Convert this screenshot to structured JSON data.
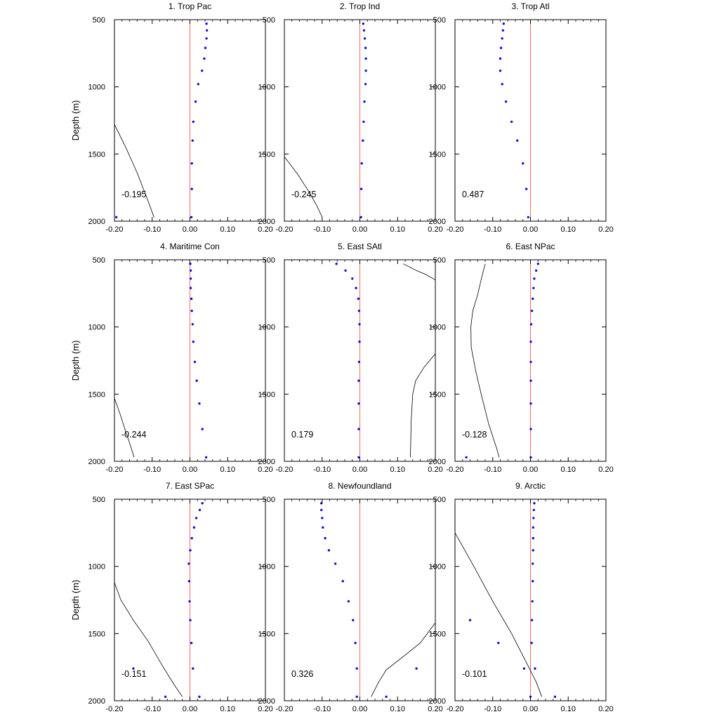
{
  "colors": {
    "zero_line": "#ff6666",
    "points": "#1010e0",
    "curve": "#000000",
    "frame": "#000000"
  },
  "shared": {
    "ylabel": "Depth (m)",
    "xlim": [
      -0.2,
      0.2
    ],
    "ylim": [
      500,
      2000
    ],
    "y_inverted": true,
    "xticks": [
      -0.2,
      -0.1,
      0.0,
      0.1,
      0.2
    ],
    "xtick_labels": [
      "-0.20",
      "-0.10",
      "0.00",
      "0.10",
      "0.20"
    ],
    "yticks": [
      500,
      1000,
      1500,
      2000
    ],
    "ytick_labels": [
      "500",
      "1000",
      "1500",
      "2000"
    ]
  },
  "chart_data": [
    {
      "type": "scatter",
      "title": "1. Trop Pac",
      "annotation": "-0.195",
      "points": [
        [
          0.044,
          530
        ],
        [
          0.045,
          580
        ],
        [
          0.044,
          640
        ],
        [
          0.041,
          710
        ],
        [
          0.038,
          790
        ],
        [
          0.032,
          880
        ],
        [
          0.022,
          980
        ],
        [
          0.015,
          1110
        ],
        [
          0.009,
          1260
        ],
        [
          0.007,
          1400
        ],
        [
          0.005,
          1570
        ],
        [
          0.005,
          1760
        ],
        [
          0.004,
          1970
        ],
        [
          -0.195,
          1970
        ]
      ],
      "curve": [
        [
          -0.2,
          1280
        ],
        [
          -0.17,
          1450
        ],
        [
          -0.14,
          1640
        ],
        [
          -0.115,
          1820
        ],
        [
          -0.095,
          1970
        ]
      ]
    },
    {
      "type": "scatter",
      "title": "2. Trop Ind",
      "annotation": "-0.245",
      "points": [
        [
          0.009,
          530
        ],
        [
          0.011,
          580
        ],
        [
          0.013,
          640
        ],
        [
          0.015,
          710
        ],
        [
          0.016,
          790
        ],
        [
          0.016,
          880
        ],
        [
          0.015,
          980
        ],
        [
          0.012,
          1110
        ],
        [
          0.01,
          1260
        ],
        [
          0.008,
          1400
        ],
        [
          0.005,
          1570
        ],
        [
          0.004,
          1760
        ],
        [
          0.003,
          1970
        ]
      ],
      "curve": [
        [
          -0.2,
          1520
        ],
        [
          -0.165,
          1650
        ],
        [
          -0.135,
          1780
        ],
        [
          -0.115,
          1880
        ],
        [
          -0.1,
          1970
        ]
      ]
    },
    {
      "type": "scatter",
      "title": "3. Trop Atl",
      "annotation": "0.487",
      "points": [
        [
          -0.071,
          530
        ],
        [
          -0.073,
          580
        ],
        [
          -0.075,
          640
        ],
        [
          -0.078,
          710
        ],
        [
          -0.08,
          790
        ],
        [
          -0.08,
          880
        ],
        [
          -0.075,
          980
        ],
        [
          -0.065,
          1110
        ],
        [
          -0.05,
          1260
        ],
        [
          -0.035,
          1400
        ],
        [
          -0.02,
          1570
        ],
        [
          -0.011,
          1760
        ],
        [
          -0.006,
          1970
        ]
      ],
      "curve": []
    },
    {
      "type": "scatter",
      "title": "4. Maritime Con",
      "annotation": "-0.244",
      "points": [
        [
          0.001,
          530
        ],
        [
          0.002,
          580
        ],
        [
          0.002,
          640
        ],
        [
          0.002,
          710
        ],
        [
          0.004,
          790
        ],
        [
          0.005,
          880
        ],
        [
          0.007,
          980
        ],
        [
          0.009,
          1110
        ],
        [
          0.013,
          1260
        ],
        [
          0.018,
          1400
        ],
        [
          0.025,
          1570
        ],
        [
          0.033,
          1760
        ],
        [
          0.043,
          1970
        ]
      ],
      "curve": [
        [
          -0.2,
          1530
        ],
        [
          -0.185,
          1650
        ],
        [
          -0.17,
          1780
        ],
        [
          -0.158,
          1880
        ],
        [
          -0.148,
          1970
        ]
      ]
    },
    {
      "type": "scatter",
      "title": "5. East SAtl",
      "annotation": "0.179",
      "points": [
        [
          -0.062,
          530
        ],
        [
          -0.038,
          580
        ],
        [
          -0.02,
          640
        ],
        [
          -0.01,
          710
        ],
        [
          -0.004,
          790
        ],
        [
          -0.002,
          880
        ],
        [
          -0.001,
          980
        ],
        [
          -0.001,
          1110
        ],
        [
          -0.002,
          1260
        ],
        [
          -0.003,
          1400
        ],
        [
          -0.003,
          1570
        ],
        [
          -0.003,
          1760
        ],
        [
          -0.003,
          1970
        ]
      ],
      "curve": [
        [
          0.115,
          530
        ],
        [
          0.15,
          580
        ],
        [
          0.175,
          610
        ],
        [
          0.2,
          650
        ]
      ],
      "curve2": [
        [
          0.2,
          1200
        ],
        [
          0.17,
          1300
        ],
        [
          0.148,
          1400
        ],
        [
          0.14,
          1500
        ],
        [
          0.136,
          1700
        ],
        [
          0.134,
          1970
        ]
      ]
    },
    {
      "type": "scatter",
      "title": "6. East NPac",
      "annotation": "-0.128",
      "points": [
        [
          0.02,
          530
        ],
        [
          0.015,
          580
        ],
        [
          0.01,
          640
        ],
        [
          0.008,
          710
        ],
        [
          0.006,
          790
        ],
        [
          0.004,
          880
        ],
        [
          0.002,
          980
        ],
        [
          0.001,
          1110
        ],
        [
          0.001,
          1260
        ],
        [
          0.001,
          1400
        ],
        [
          0.001,
          1570
        ],
        [
          0.001,
          1760
        ],
        [
          0.001,
          1970
        ],
        [
          -0.17,
          1970
        ]
      ],
      "curve": [
        [
          -0.12,
          530
        ],
        [
          -0.13,
          640
        ],
        [
          -0.14,
          760
        ],
        [
          -0.153,
          880
        ],
        [
          -0.158,
          1000
        ],
        [
          -0.157,
          1150
        ],
        [
          -0.145,
          1330
        ],
        [
          -0.128,
          1530
        ],
        [
          -0.11,
          1730
        ],
        [
          -0.09,
          1900
        ],
        [
          -0.083,
          1970
        ]
      ]
    },
    {
      "type": "scatter",
      "title": "7. East SPac",
      "annotation": "-0.151",
      "points": [
        [
          0.033,
          530
        ],
        [
          0.026,
          580
        ],
        [
          0.017,
          640
        ],
        [
          0.011,
          710
        ],
        [
          0.005,
          790
        ],
        [
          0.001,
          880
        ],
        [
          -0.003,
          980
        ],
        [
          -0.002,
          1110
        ],
        [
          -0.001,
          1260
        ],
        [
          0.001,
          1400
        ],
        [
          0.004,
          1570
        ],
        [
          0.008,
          1760
        ],
        [
          0.025,
          1970
        ],
        [
          -0.065,
          1970
        ],
        [
          -0.15,
          1760
        ]
      ],
      "curve": [
        [
          -0.2,
          1120
        ],
        [
          -0.183,
          1250
        ],
        [
          -0.15,
          1400
        ],
        [
          -0.11,
          1560
        ],
        [
          -0.075,
          1730
        ],
        [
          -0.042,
          1880
        ],
        [
          -0.02,
          1970
        ]
      ]
    },
    {
      "type": "scatter",
      "title": "8. Newfoundland",
      "annotation": "0.326",
      "points": [
        [
          -0.102,
          530
        ],
        [
          -0.102,
          580
        ],
        [
          -0.1,
          640
        ],
        [
          -0.098,
          710
        ],
        [
          -0.092,
          790
        ],
        [
          -0.082,
          880
        ],
        [
          -0.065,
          980
        ],
        [
          -0.045,
          1110
        ],
        [
          -0.03,
          1260
        ],
        [
          -0.018,
          1400
        ],
        [
          -0.012,
          1570
        ],
        [
          -0.008,
          1760
        ],
        [
          -0.008,
          1970
        ],
        [
          0.15,
          1760
        ],
        [
          0.07,
          1970
        ]
      ],
      "curve": [
        [
          0.2,
          1420
        ],
        [
          0.16,
          1570
        ],
        [
          0.12,
          1660
        ],
        [
          0.07,
          1770
        ],
        [
          0.05,
          1860
        ],
        [
          0.03,
          1970
        ]
      ]
    },
    {
      "type": "scatter",
      "title": "9. Arctic",
      "annotation": "-0.101",
      "points": [
        [
          0.01,
          530
        ],
        [
          0.009,
          580
        ],
        [
          0.008,
          640
        ],
        [
          0.007,
          710
        ],
        [
          0.007,
          790
        ],
        [
          0.007,
          880
        ],
        [
          0.006,
          980
        ],
        [
          0.006,
          1110
        ],
        [
          0.005,
          1260
        ],
        [
          0.004,
          1400
        ],
        [
          0.003,
          1570
        ],
        [
          0.012,
          1760
        ],
        [
          0.0,
          1970
        ],
        [
          -0.16,
          1400
        ],
        [
          -0.085,
          1570
        ],
        [
          -0.017,
          1760
        ],
        [
          0.065,
          1970
        ]
      ],
      "curve": [
        [
          -0.2,
          750
        ],
        [
          -0.15,
          1000
        ],
        [
          -0.1,
          1260
        ],
        [
          -0.05,
          1500
        ],
        [
          -0.01,
          1720
        ],
        [
          0.015,
          1860
        ],
        [
          0.03,
          1970
        ]
      ]
    }
  ]
}
